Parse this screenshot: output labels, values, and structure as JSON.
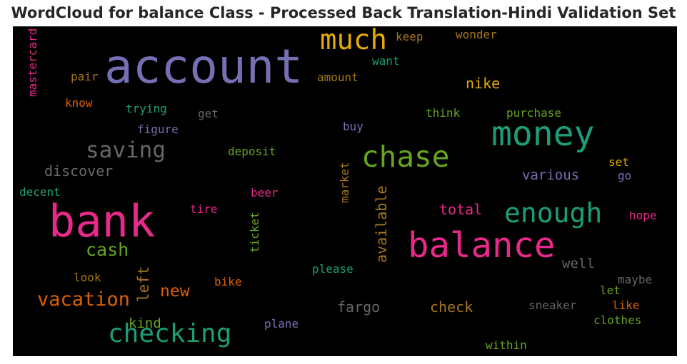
{
  "header": {
    "title": "WordCloud for balance Class - Processed Back Translation-Hindi Validation Set"
  },
  "chart_data": {
    "type": "wordcloud",
    "background": "#000000",
    "words": [
      {
        "text": "account",
        "color": "#7570b3",
        "weight": 1.0
      },
      {
        "text": "bank",
        "color": "#e7298a",
        "weight": 0.92
      },
      {
        "text": "balance",
        "color": "#e7298a",
        "weight": 0.8
      },
      {
        "text": "money",
        "color": "#1b9e77",
        "weight": 0.78
      },
      {
        "text": "chase",
        "color": "#66a61e",
        "weight": 0.66
      },
      {
        "text": "much",
        "color": "#e6ab02",
        "weight": 0.63
      },
      {
        "text": "enough",
        "color": "#1b9e77",
        "weight": 0.62
      },
      {
        "text": "checking",
        "color": "#1b9e77",
        "weight": 0.6
      },
      {
        "text": "saving",
        "color": "#666666",
        "weight": 0.52
      },
      {
        "text": "vacation",
        "color": "#d95f02",
        "weight": 0.45
      },
      {
        "text": "cash",
        "color": "#66a61e",
        "weight": 0.4
      },
      {
        "text": "new",
        "color": "#d95f02",
        "weight": 0.38
      },
      {
        "text": "left",
        "color": "#a6761d",
        "weight": 0.36
      },
      {
        "text": "available",
        "color": "#a6761d",
        "weight": 0.34
      },
      {
        "text": "discover",
        "color": "#666666",
        "weight": 0.33
      },
      {
        "text": "fargo",
        "color": "#666666",
        "weight": 0.33
      },
      {
        "text": "check",
        "color": "#a6761d",
        "weight": 0.33
      },
      {
        "text": "nike",
        "color": "#e6ab02",
        "weight": 0.32
      },
      {
        "text": "total",
        "color": "#e7298a",
        "weight": 0.32
      },
      {
        "text": "various",
        "color": "#7570b3",
        "weight": 0.32
      },
      {
        "text": "well",
        "color": "#666666",
        "weight": 0.32
      },
      {
        "text": "kind",
        "color": "#66a61e",
        "weight": 0.31
      },
      {
        "text": "mastercard",
        "color": "#e7298a",
        "weight": 0.27
      },
      {
        "text": "keep",
        "color": "#a6761d",
        "weight": 0.27
      },
      {
        "text": "wonder",
        "color": "#a6761d",
        "weight": 0.27
      },
      {
        "text": "want",
        "color": "#1b9e77",
        "weight": 0.27
      },
      {
        "text": "pair",
        "color": "#a6761d",
        "weight": 0.27
      },
      {
        "text": "amount",
        "color": "#a6761d",
        "weight": 0.27
      },
      {
        "text": "know",
        "color": "#d95f02",
        "weight": 0.27
      },
      {
        "text": "trying",
        "color": "#1b9e77",
        "weight": 0.27
      },
      {
        "text": "get",
        "color": "#666666",
        "weight": 0.27
      },
      {
        "text": "think",
        "color": "#66a61e",
        "weight": 0.27
      },
      {
        "text": "purchase",
        "color": "#66a61e",
        "weight": 0.27
      },
      {
        "text": "figure",
        "color": "#7570b3",
        "weight": 0.27
      },
      {
        "text": "buy",
        "color": "#7570b3",
        "weight": 0.27
      },
      {
        "text": "deposit",
        "color": "#66a61e",
        "weight": 0.27
      },
      {
        "text": "set",
        "color": "#e6ab02",
        "weight": 0.27
      },
      {
        "text": "go",
        "color": "#7570b3",
        "weight": 0.27
      },
      {
        "text": "market",
        "color": "#a6761d",
        "weight": 0.27
      },
      {
        "text": "decent",
        "color": "#1b9e77",
        "weight": 0.27
      },
      {
        "text": "beer",
        "color": "#e7298a",
        "weight": 0.27
      },
      {
        "text": "tire",
        "color": "#e7298a",
        "weight": 0.27
      },
      {
        "text": "ticket",
        "color": "#66a61e",
        "weight": 0.27
      },
      {
        "text": "hope",
        "color": "#e7298a",
        "weight": 0.27
      },
      {
        "text": "please",
        "color": "#1b9e77",
        "weight": 0.27
      },
      {
        "text": "look",
        "color": "#a6761d",
        "weight": 0.27
      },
      {
        "text": "bike",
        "color": "#d95f02",
        "weight": 0.27
      },
      {
        "text": "maybe",
        "color": "#666666",
        "weight": 0.27
      },
      {
        "text": "let",
        "color": "#66a61e",
        "weight": 0.27
      },
      {
        "text": "sneaker",
        "color": "#666666",
        "weight": 0.27
      },
      {
        "text": "like",
        "color": "#d95f02",
        "weight": 0.27
      },
      {
        "text": "plane",
        "color": "#7570b3",
        "weight": 0.27
      },
      {
        "text": "clothes",
        "color": "#66a61e",
        "weight": 0.27
      },
      {
        "text": "within",
        "color": "#66a61e",
        "weight": 0.27
      }
    ]
  }
}
